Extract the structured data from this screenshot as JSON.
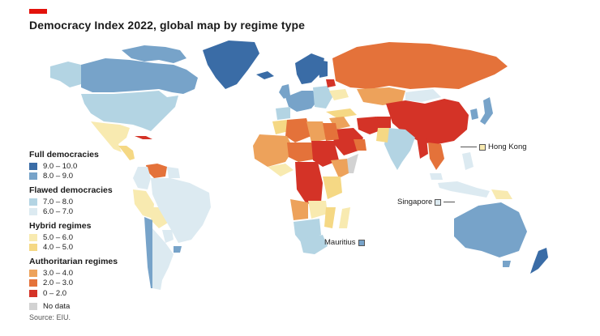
{
  "title": "Democracy Index 2022, global map by regime type",
  "source": "Source: EIU.",
  "colors": {
    "full_high": "#3a6ca6",
    "full_low": "#77a3c9",
    "flawed_high": "#b3d4e3",
    "flawed_low": "#dceaf1",
    "hybrid_high": "#f8eab0",
    "hybrid_low": "#f5d884",
    "auth_high": "#eda25b",
    "auth_mid": "#e4723a",
    "auth_low": "#d43327",
    "no_data": "#d2d2d2",
    "accent": "#e3120b"
  },
  "legend": [
    {
      "heading": "Full democracies",
      "items": [
        {
          "label": "9.0 – 10.0",
          "color": "#3a6ca6"
        },
        {
          "label": "8.0 – 9.0",
          "color": "#77a3c9"
        }
      ]
    },
    {
      "heading": "Flawed democracies",
      "items": [
        {
          "label": "7.0 – 8.0",
          "color": "#b3d4e3"
        },
        {
          "label": "6.0 – 7.0",
          "color": "#dceaf1"
        }
      ]
    },
    {
      "heading": "Hybrid regimes",
      "items": [
        {
          "label": "5.0 – 6.0",
          "color": "#f8eab0"
        },
        {
          "label": "4.0 – 5.0",
          "color": "#f5d884"
        }
      ]
    },
    {
      "heading": "Authoritarian regimes",
      "items": [
        {
          "label": "3.0 – 4.0",
          "color": "#eda25b"
        },
        {
          "label": "2.0 – 3.0",
          "color": "#e4723a"
        },
        {
          "label": "0 – 2.0",
          "color": "#d43327"
        }
      ]
    },
    {
      "heading": "",
      "items": [
        {
          "label": "No data",
          "color": "#d2d2d2"
        }
      ]
    }
  ],
  "callouts": {
    "hong_kong": "Hong Kong",
    "singapore": "Singapore",
    "mauritius": "Mauritius"
  }
}
